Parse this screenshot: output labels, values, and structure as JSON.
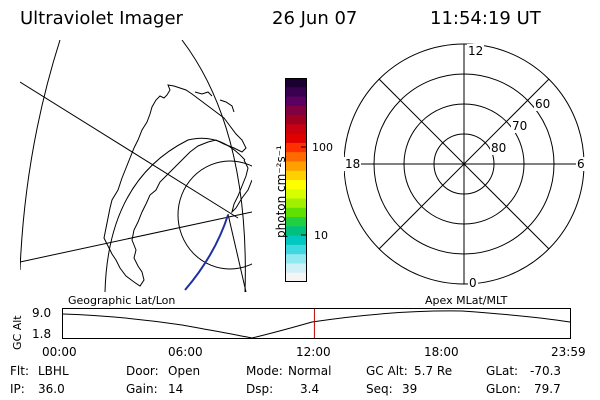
{
  "header": {
    "title": "Ultraviolet Imager",
    "date": "26 Jun 07",
    "time": "11:54:19 UT"
  },
  "colorbar": {
    "unit_label": "photon cm⁻²s⁻¹",
    "tick_100": "100",
    "tick_10": "10",
    "colors": [
      "#1a0030",
      "#3a0050",
      "#5a0060",
      "#800040",
      "#a00020",
      "#c80010",
      "#e00000",
      "#ff3000",
      "#ff6a00",
      "#ffa000",
      "#ffd000",
      "#ffff00",
      "#d8ff00",
      "#a0f000",
      "#60e000",
      "#20d040",
      "#00c080",
      "#00c8c0",
      "#40d8e0",
      "#90e8f0",
      "#d0f0f8",
      "#f4f4f4"
    ]
  },
  "polar_plot": {
    "mlt_top": "12",
    "mlt_bottom": "0",
    "mlt_left": "18",
    "mlt_right": "6",
    "lat_60": "60",
    "lat_70": "70",
    "lat_80": "80"
  },
  "panel_labels": {
    "left": "Geographic Lat/Lon",
    "right": "Apex MLat/MLT"
  },
  "timeline": {
    "y_axis_label": "GC Alt",
    "y_max": "9.0",
    "y_min": "1.8",
    "x_ticks": [
      "00:00",
      "06:00",
      "12:00",
      "18:00",
      "23:59"
    ],
    "current_time_hours": 11.9,
    "marker_color": "#c00000"
  },
  "status": {
    "flt_label": "Flt:",
    "flt_value": "LBHL",
    "ip_label": "IP:",
    "ip_value": "36.0",
    "door_label": "Door:",
    "door_value": "Open",
    "gain_label": "Gain:",
    "gain_value": "14",
    "mode_label": "Mode:",
    "mode_value": "Normal",
    "dsp_label": "Dsp:",
    "dsp_value": "3.4",
    "gcalt_label": "GC Alt:",
    "gcalt_value": "5.7 Re",
    "seq_label": "Seq:",
    "seq_value": "39",
    "glat_label": "GLat:",
    "glat_value": "-70.3",
    "glon_label": "GLon:",
    "glon_value": "79.7"
  }
}
